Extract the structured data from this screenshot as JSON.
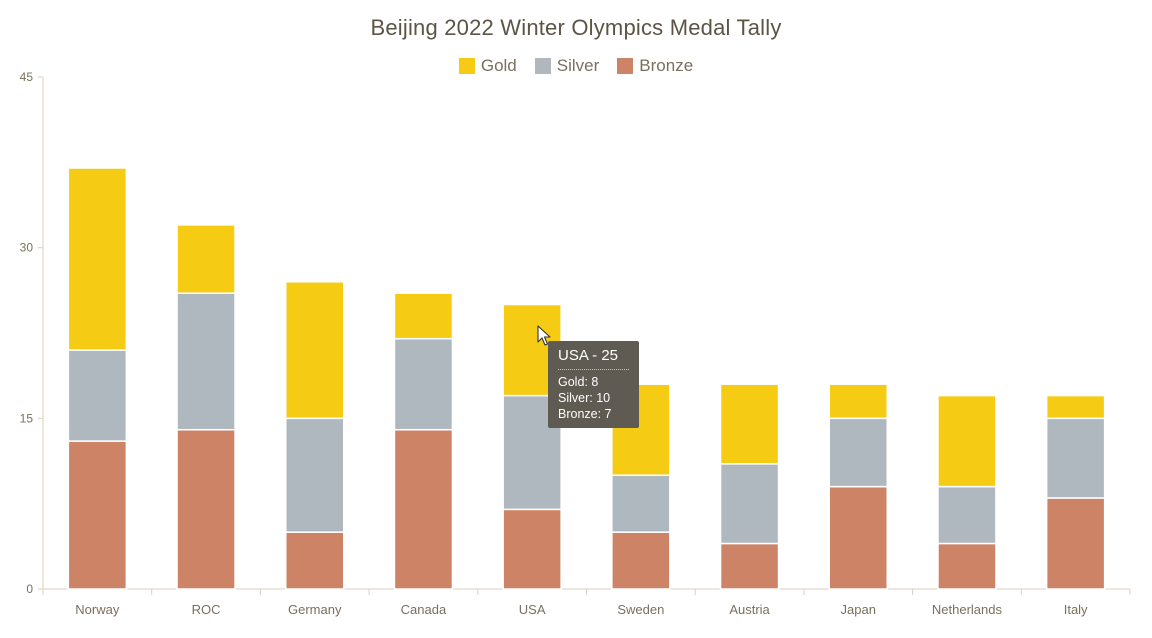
{
  "title": "Beijing 2022 Winter Olympics Medal Tally",
  "colors": {
    "gold": "#f6cb14",
    "silver": "#b0b8bf",
    "bronze": "#cd8466",
    "axis": "#dccfc2",
    "text": "#7b6f5d"
  },
  "chart_data": {
    "type": "bar",
    "stacked": true,
    "title": "Beijing 2022 Winter Olympics Medal Tally",
    "xlabel": "",
    "ylabel": "",
    "ylim": [
      0,
      45
    ],
    "yticks": [
      0,
      15,
      30,
      45
    ],
    "grid": false,
    "legend_position": "top",
    "categories": [
      "Norway",
      "ROC",
      "Germany",
      "Canada",
      "USA",
      "Sweden",
      "Austria",
      "Japan",
      "Netherlands",
      "Italy"
    ],
    "series": [
      {
        "name": "Bronze",
        "color": "#cd8466",
        "values": [
          13,
          14,
          5,
          14,
          7,
          5,
          4,
          9,
          4,
          8
        ]
      },
      {
        "name": "Silver",
        "color": "#b0b8bf",
        "values": [
          8,
          12,
          10,
          8,
          10,
          5,
          7,
          6,
          5,
          7
        ]
      },
      {
        "name": "Gold",
        "color": "#f6cb14",
        "values": [
          16,
          6,
          12,
          4,
          8,
          8,
          7,
          3,
          8,
          2
        ]
      }
    ]
  },
  "legend": [
    {
      "label": "Gold",
      "color": "#f6cb14"
    },
    {
      "label": "Silver",
      "color": "#b0b8bf"
    },
    {
      "label": "Bronze",
      "color": "#cd8466"
    }
  ],
  "tooltip": {
    "title": "USA - 25",
    "gold": "Gold: 8",
    "silver": "Silver: 10",
    "bronze": "Bronze: 7"
  }
}
